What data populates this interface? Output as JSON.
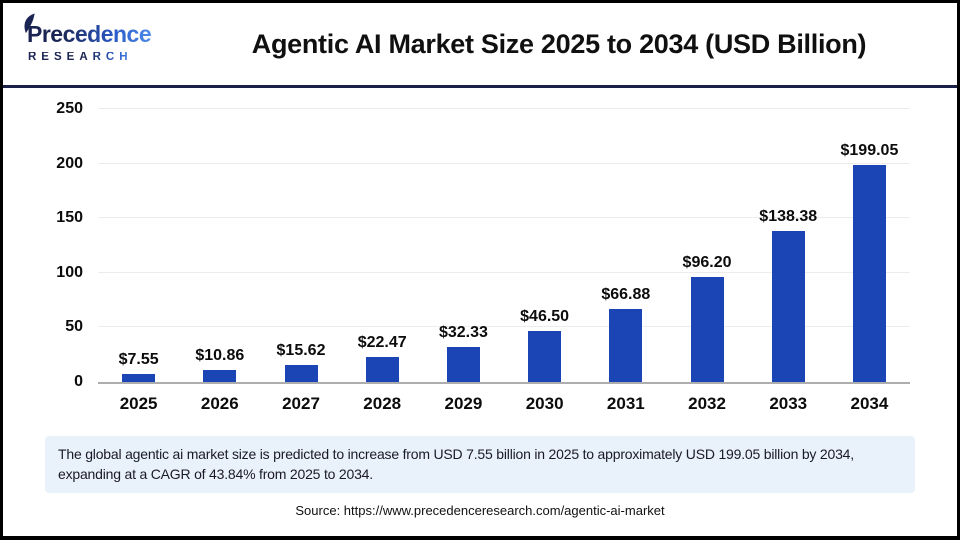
{
  "header": {
    "logo": {
      "line1": "Precedence",
      "line2": "RESEARCH"
    },
    "title": "Agentic AI Market Size 2025 to 2034 (USD Billion)"
  },
  "chart_data": {
    "type": "bar",
    "title": "Agentic AI Market Size 2025 to 2034 (USD Billion)",
    "categories": [
      "2025",
      "2026",
      "2027",
      "2028",
      "2029",
      "2030",
      "2031",
      "2032",
      "2033",
      "2034"
    ],
    "values": [
      7.55,
      10.86,
      15.62,
      22.47,
      32.33,
      46.5,
      66.88,
      96.2,
      138.38,
      199.05
    ],
    "labels": [
      "$7.55",
      "$10.86",
      "$15.62",
      "$22.47",
      "$32.33",
      "$46.50",
      "$66.88",
      "$96.20",
      "$138.38",
      "$199.05"
    ],
    "xlabel": "",
    "ylabel": "",
    "ylim": [
      0,
      250
    ],
    "yticks": [
      0,
      50,
      100,
      150,
      200,
      250
    ],
    "grid": true,
    "legend": "none",
    "bar_color": "#1b45b4"
  },
  "summary": {
    "text": "The global agentic ai market size is predicted to increase from USD 7.55 billion in 2025 to approximately USD 199.05 billion by 2034, expanding at a CAGR of 43.84% from 2025 to 2034."
  },
  "source": {
    "text": "Source: https://www.precedenceresearch.com/agentic-ai-market"
  },
  "colors": {
    "bar": "#1b45b4",
    "divider": "#1a2347",
    "summary_bg": "#e9f1fb",
    "gridline": "#ececec",
    "baseline": "#adadad"
  }
}
